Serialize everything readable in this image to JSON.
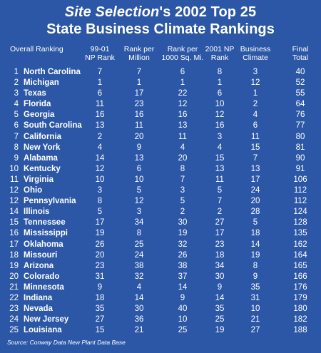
{
  "title": {
    "line1_em": "Site Selection",
    "line1_rest": "'s 2002 Top 25",
    "line2": "State Business Climate Rankings"
  },
  "columns": [
    {
      "line1": "Overall Ranking",
      "line2": ""
    },
    {
      "line1": "99-01",
      "line2": "NP Rank"
    },
    {
      "line1": "Rank per",
      "line2": "Million"
    },
    {
      "line1": "Rank per",
      "line2": "1000 Sq. Mi."
    },
    {
      "line1": "2001 NP",
      "line2": "Rank"
    },
    {
      "line1": "Business",
      "line2": "Climate"
    },
    {
      "line1": "Final",
      "line2": "Total"
    }
  ],
  "rows": [
    {
      "rank": "1",
      "state": "North Carolina",
      "values": [
        "7",
        "7",
        "6",
        "8",
        "3",
        "40"
      ]
    },
    {
      "rank": "2",
      "state": "Michigan",
      "values": [
        "1",
        "1",
        "1",
        "1",
        "12",
        "52"
      ]
    },
    {
      "rank": "3",
      "state": "Texas",
      "values": [
        "6",
        "17",
        "22",
        "6",
        "1",
        "55"
      ]
    },
    {
      "rank": "4",
      "state": "Florida",
      "values": [
        "11",
        "23",
        "12",
        "10",
        "2",
        "64"
      ]
    },
    {
      "rank": "5",
      "state": "Georgia",
      "values": [
        "16",
        "16",
        "16",
        "12",
        "4",
        "76"
      ]
    },
    {
      "rank": "6",
      "state": "South Carolina",
      "values": [
        "13",
        "11",
        "13",
        "16",
        "6",
        "77"
      ]
    },
    {
      "rank": "7",
      "state": "California",
      "values": [
        "2",
        "20",
        "11",
        "3",
        "11",
        "80"
      ]
    },
    {
      "rank": "8",
      "state": "New York",
      "values": [
        "4",
        "9",
        "4",
        "4",
        "15",
        "81"
      ]
    },
    {
      "rank": "9",
      "state": "Alabama",
      "values": [
        "14",
        "13",
        "20",
        "15",
        "7",
        "90"
      ]
    },
    {
      "rank": "10",
      "state": "Kentucky",
      "values": [
        "12",
        "6",
        "8",
        "13",
        "13",
        "91"
      ]
    },
    {
      "rank": "11",
      "state": "Virginia",
      "values": [
        "10",
        "10",
        "7",
        "11",
        "17",
        "106"
      ]
    },
    {
      "rank": "12",
      "state": "Ohio",
      "values": [
        "3",
        "5",
        "3",
        "5",
        "24",
        "112"
      ]
    },
    {
      "rank": "12",
      "state": "Pennsylvania",
      "values": [
        "8",
        "12",
        "5",
        "7",
        "20",
        "112"
      ]
    },
    {
      "rank": "14",
      "state": "Illinois",
      "values": [
        "5",
        "3",
        "2",
        "2",
        "28",
        "124"
      ]
    },
    {
      "rank": "15",
      "state": "Tennessee",
      "values": [
        "17",
        "34",
        "30",
        "27",
        "5",
        "128"
      ]
    },
    {
      "rank": "16",
      "state": "Mississippi",
      "values": [
        "19",
        "8",
        "19",
        "17",
        "18",
        "135"
      ]
    },
    {
      "rank": "17",
      "state": "Oklahoma",
      "values": [
        "26",
        "25",
        "32",
        "23",
        "14",
        "162"
      ]
    },
    {
      "rank": "18",
      "state": "Missouri",
      "values": [
        "20",
        "24",
        "26",
        "18",
        "19",
        "164"
      ]
    },
    {
      "rank": "19",
      "state": "Arizona",
      "values": [
        "23",
        "38",
        "38",
        "34",
        "8",
        "165"
      ]
    },
    {
      "rank": "20",
      "state": "Colorado",
      "values": [
        "31",
        "32",
        "37",
        "30",
        "9",
        "166"
      ]
    },
    {
      "rank": "21",
      "state": "Minnesota",
      "values": [
        "9",
        "4",
        "14",
        "9",
        "35",
        "176"
      ]
    },
    {
      "rank": "22",
      "state": "Indiana",
      "values": [
        "18",
        "14",
        "9",
        "14",
        "31",
        "179"
      ]
    },
    {
      "rank": "23",
      "state": "Nevada",
      "values": [
        "35",
        "30",
        "40",
        "35",
        "10",
        "180"
      ]
    },
    {
      "rank": "24",
      "state": "New Jersey",
      "values": [
        "27",
        "36",
        "10",
        "25",
        "21",
        "182"
      ]
    },
    {
      "rank": "25",
      "state": "Louisiana",
      "values": [
        "15",
        "21",
        "25",
        "19",
        "27",
        "188"
      ]
    }
  ],
  "source": "Source: Conway Data New Plant Data Base",
  "colors": {
    "background": "#2c57a6",
    "text": "#ffffff"
  }
}
